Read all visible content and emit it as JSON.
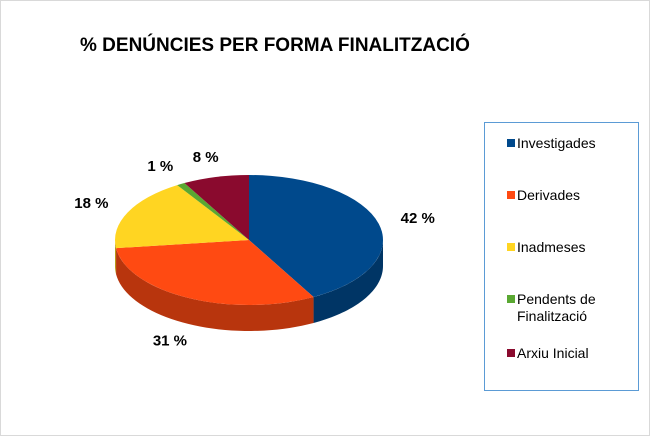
{
  "chart_data": {
    "type": "pie",
    "title": "% DENÚNCIES PER FORMA FINALITZACIÓ",
    "categories": [
      "Investigades",
      "Derivades",
      "Inadmeses",
      "Pendents de Finalització",
      "Arxiu Inicial"
    ],
    "values": [
      42,
      31,
      18,
      1,
      8
    ],
    "value_labels": [
      "42 %",
      "31 %",
      "18 %",
      "1 %",
      "8 %"
    ],
    "colors": [
      "#00498c",
      "#ff4a12",
      "#ffd522",
      "#5aa832",
      "#8a0a2e"
    ],
    "legend": "right"
  }
}
